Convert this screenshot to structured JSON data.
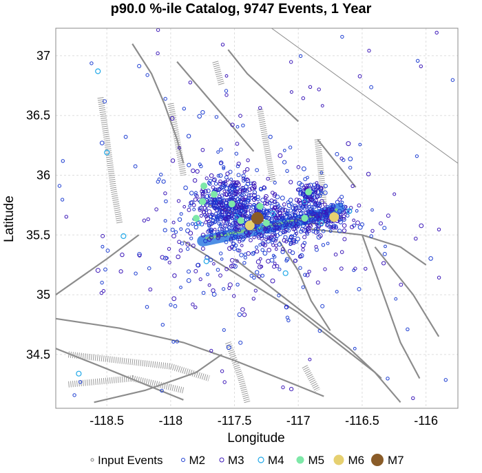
{
  "chart_data": {
    "type": "scatter",
    "title": "p90.0 %-ile Catalog, 9747 Events, 1 Year",
    "xlabel": "Longitude",
    "ylabel": "Latitude",
    "xlim": [
      -118.9,
      -115.75
    ],
    "ylim": [
      34.05,
      37.23
    ],
    "xticks": [
      -118.5,
      -118,
      -117.5,
      -117,
      -116.5,
      -116
    ],
    "xtick_labels": [
      "-118.5",
      "-118",
      "-117.5",
      "-117",
      "-116.5",
      "-116"
    ],
    "yticks": [
      34.5,
      35,
      35.5,
      36,
      36.5,
      37
    ],
    "ytick_labels": [
      "34.5",
      "35",
      "35.5",
      "36",
      "36.5",
      "37"
    ],
    "grid": true,
    "legend_position": "bottom",
    "legend": [
      {
        "name": "Input Events",
        "color": "#777777",
        "size": "tiny"
      },
      {
        "name": "M2",
        "color": "#1a3bd1",
        "size": "small"
      },
      {
        "name": "M3",
        "color": "#3a16b8",
        "size": "small"
      },
      {
        "name": "M4",
        "color": "#20a8e8",
        "size": "medium"
      },
      {
        "name": "M5",
        "color": "#7ee8a8",
        "size": "medium-filled"
      },
      {
        "name": "M6",
        "color": "#e6d070",
        "size": "large-filled"
      },
      {
        "name": "M7",
        "color": "#8a5c28",
        "size": "xlarge-filled"
      }
    ],
    "series": [
      {
        "name": "M4",
        "points": [
          [
            -118.57,
            36.87
          ],
          [
            -118.5,
            36.19
          ],
          [
            -118.37,
            35.49
          ],
          [
            -117.78,
            35.6
          ],
          [
            -117.72,
            35.28
          ],
          [
            -117.48,
            35.65
          ],
          [
            -117.3,
            35.55
          ],
          [
            -117.2,
            35.68
          ],
          [
            -116.95,
            35.78
          ],
          [
            -117.1,
            35.18
          ],
          [
            -116.6,
            35.7
          ],
          [
            -118.72,
            34.34
          ],
          [
            -116.82,
            35.6
          ]
        ]
      },
      {
        "name": "M5",
        "points": [
          [
            -117.74,
            35.91
          ],
          [
            -117.66,
            35.84
          ],
          [
            -117.75,
            35.78
          ],
          [
            -117.8,
            35.64
          ],
          [
            -117.52,
            35.76
          ],
          [
            -117.45,
            35.62
          ],
          [
            -117.3,
            35.74
          ],
          [
            -117.25,
            35.6
          ],
          [
            -116.92,
            35.86
          ],
          [
            -116.95,
            35.64
          ]
        ]
      },
      {
        "name": "M6",
        "points": [
          [
            -116.72,
            35.65
          ],
          [
            -117.38,
            35.58
          ]
        ]
      },
      {
        "name": "M7",
        "points": [
          [
            -117.32,
            35.64
          ]
        ]
      }
    ],
    "annotations": []
  },
  "colors": {
    "m2": "#1a3bd1",
    "m3": "#3a16b8",
    "m4": "#20a8e8",
    "m5": "#7ee8a8",
    "m6": "#e6d070",
    "m7": "#8a5c28",
    "density": "#2f7be0",
    "fault": "#8c8c8c",
    "grid": "#dddddd"
  }
}
